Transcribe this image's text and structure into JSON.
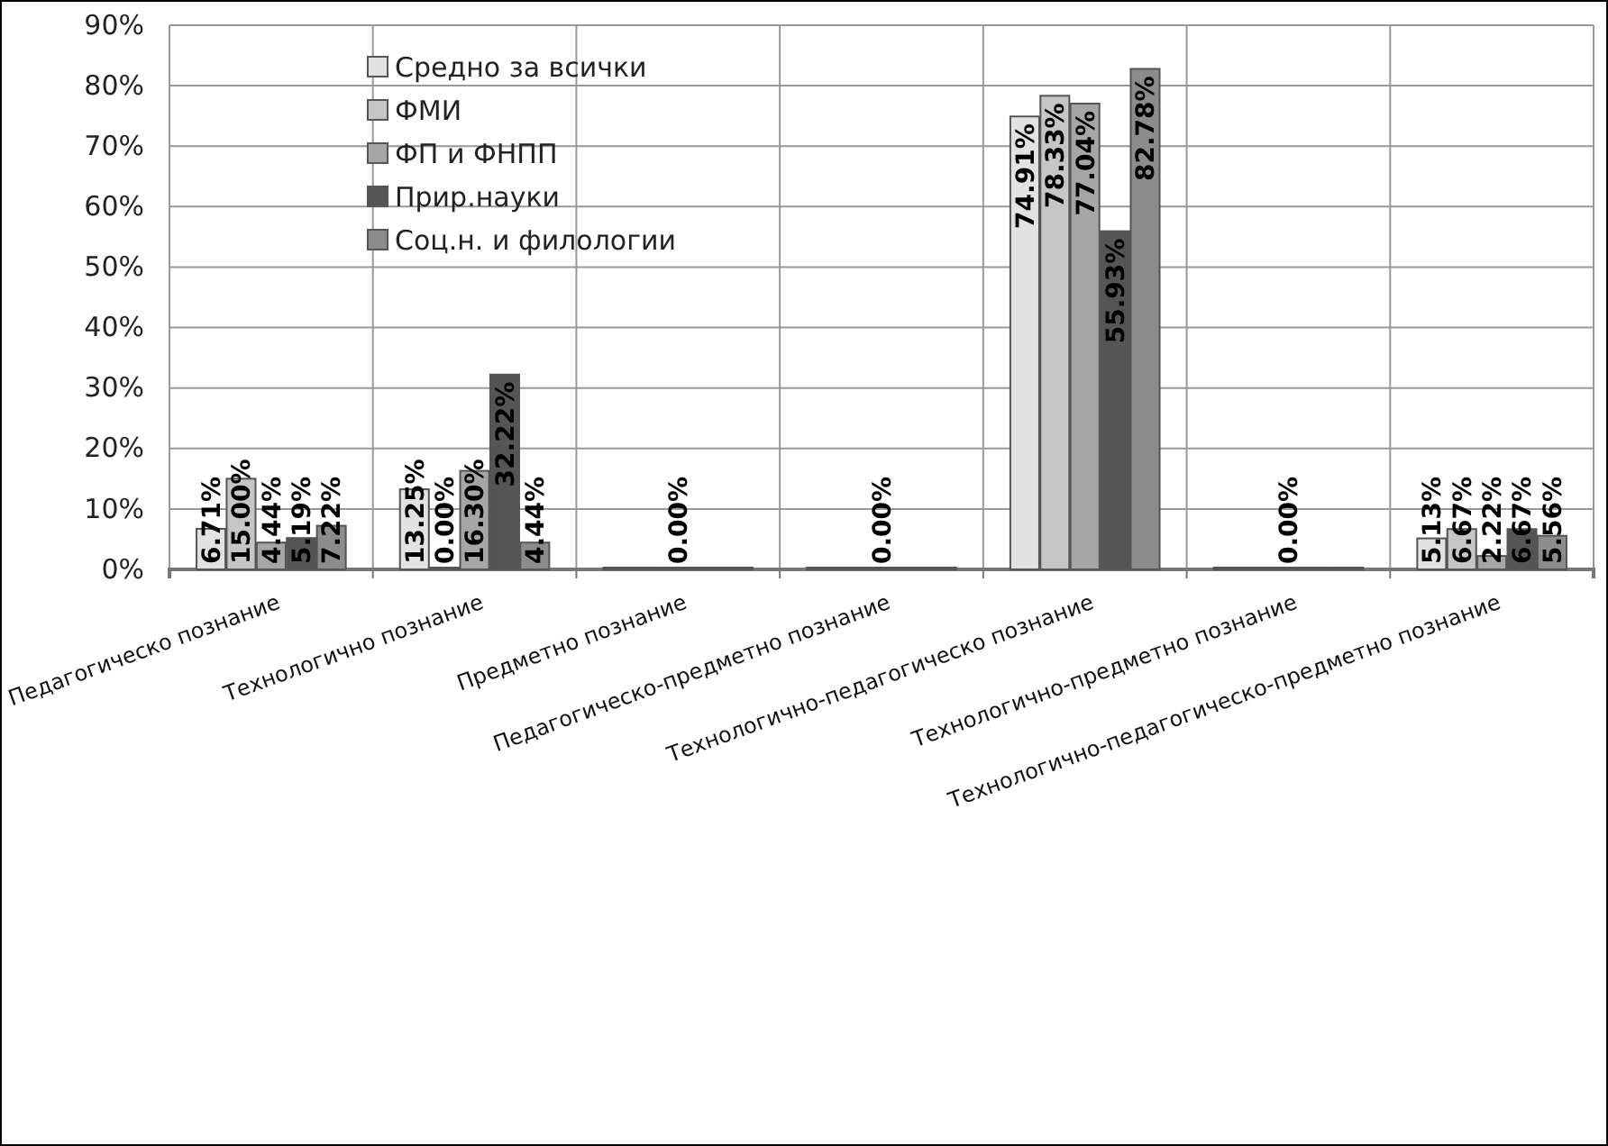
{
  "chart_data": {
    "type": "bar",
    "categories": [
      "Педагогическо познание",
      "Технологично познание",
      "Предметно познание",
      "Педагогическо-предметно познание",
      "Технологично-педагогическо познание",
      "Технологично-предметно познание",
      "Технологично-педагогическо-предметно познание"
    ],
    "series": [
      {
        "name": "Средно за всички",
        "color": "#e2e2e2",
        "values": [
          6.71,
          13.25,
          0,
          0,
          74.91,
          0,
          5.13
        ],
        "value_labels": [
          "6.71%",
          "13.25%",
          null,
          null,
          "74.91%",
          null,
          "5.13%"
        ]
      },
      {
        "name": "ФМИ",
        "color": "#c6c6c6",
        "values": [
          15.0,
          0,
          0,
          0,
          78.33,
          0,
          6.67
        ],
        "value_labels": [
          "15.00%",
          "0.00%",
          null,
          null,
          "78.33%",
          null,
          "6.67%"
        ]
      },
      {
        "name": "ФП и ФНПП",
        "color": "#a6a6a6",
        "values": [
          4.44,
          16.3,
          0,
          0,
          77.04,
          0,
          2.22
        ],
        "value_labels": [
          "4.44%",
          "16.30%",
          "0.00%",
          "0.00%",
          "77.04%",
          "0.00%",
          "2.22%"
        ]
      },
      {
        "name": "Прир.науки",
        "color": "#555555",
        "values": [
          5.19,
          32.22,
          0,
          0,
          55.93,
          0,
          6.67
        ],
        "value_labels": [
          "5.19%",
          "32.22%",
          null,
          null,
          "55.93%",
          null,
          "6.67%"
        ]
      },
      {
        "name": "Соц.н. и филологии",
        "color": "#8c8c8c",
        "values": [
          7.22,
          4.44,
          0,
          0,
          82.78,
          0,
          5.56
        ],
        "value_labels": [
          "7.22%",
          "4.44%",
          null,
          null,
          "82.78%",
          null,
          "5.56%"
        ]
      }
    ],
    "ylim": [
      0,
      90
    ],
    "yticks": [
      {
        "value": 0,
        "label": "0%"
      },
      {
        "value": 10,
        "label": "10%"
      },
      {
        "value": 20,
        "label": "20%"
      },
      {
        "value": 30,
        "label": "30%"
      },
      {
        "value": 40,
        "label": "40%"
      },
      {
        "value": 50,
        "label": "50%"
      },
      {
        "value": 60,
        "label": "60%"
      },
      {
        "value": 70,
        "label": "70%"
      },
      {
        "value": 80,
        "label": "80%"
      },
      {
        "value": 90,
        "label": "90%"
      }
    ],
    "grid": true,
    "legend": "top left"
  }
}
